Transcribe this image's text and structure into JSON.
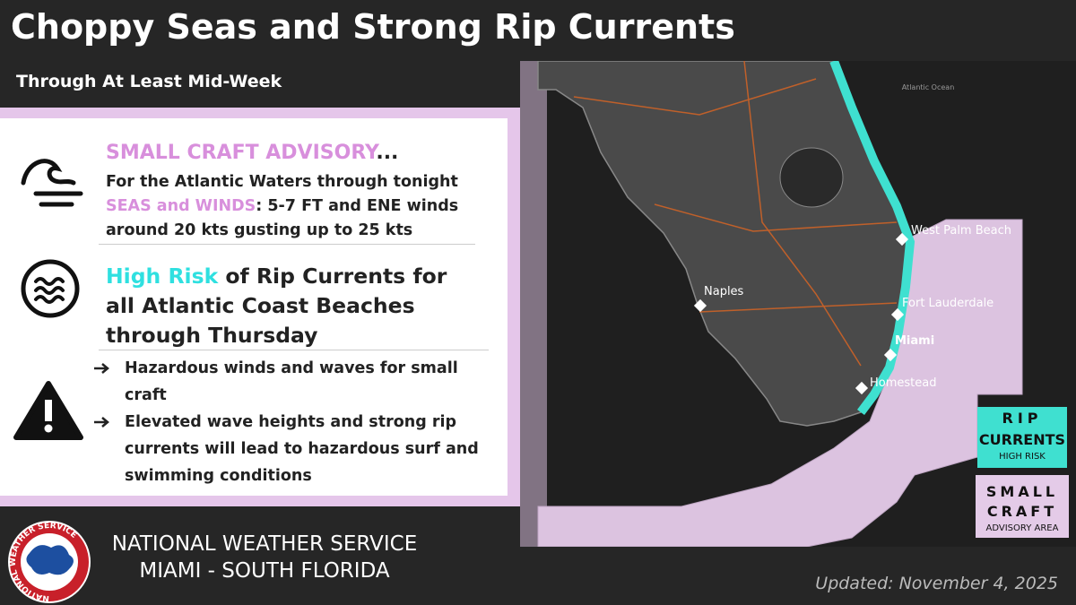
{
  "header": {
    "title": "Choppy Seas and Strong Rip Currents",
    "subtitle": "Through At Least Mid-Week"
  },
  "advisory": {
    "heading": "SMALL CRAFT ADVISORY",
    "heading_suffix": "...",
    "line": "For the Atlantic Waters through tonight",
    "highlight": "SEAS and WINDS",
    "detail": ": 5-7 FT and ENE winds around 20 kts gusting up to 25 kts"
  },
  "rip": {
    "highlight": "High Risk",
    "text": " of Rip Currents for all Atlantic Coast Beaches through Thursday"
  },
  "bullets": [
    "Hazardous winds and waves for small craft",
    "Elevated wave heights and strong rip currents will lead to hazardous surf and swimming conditions"
  ],
  "map": {
    "ocean_label": "Atlantic Ocean",
    "cities": [
      "West Palm Beach",
      "Naples",
      "Fort Lauderdale",
      "Miami",
      "Homestead"
    ]
  },
  "legend": {
    "rip": [
      "RIP",
      "CURRENTS",
      "HIGH RISK"
    ],
    "craft": [
      "SMALL",
      "CRAFT",
      "ADVISORY AREA"
    ]
  },
  "footer": {
    "logo_text": "NATIONAL WEATHER SERVICE",
    "org": "NATIONAL WEATHER SERVICE",
    "office": "MIAMI - SOUTH FLORIDA",
    "updated": "Updated: November 4, 2025"
  }
}
